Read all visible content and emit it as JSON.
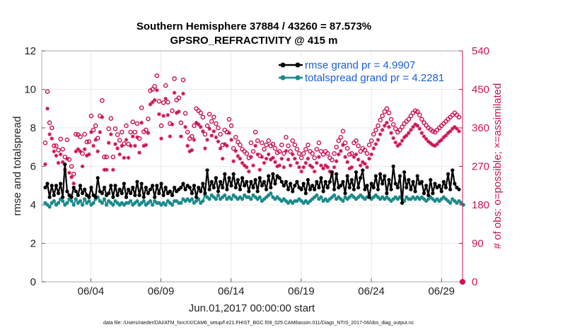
{
  "chart_data": {
    "type": "line",
    "title_line1": "Southern Hemisphere 37884 / 43260 = 87.573%",
    "title_line2": "GPSRO_REFRACTIVITY @ 415 m",
    "xlabel": "Jun.01,2017 00:00:00 start",
    "ylabel_left": "rmse and totalspread",
    "ylabel_right": "# of obs: o=possible; ×=assimilated",
    "footer": "data file: /Users/raeder/DAI/ATM_forcXX/CAM6_setup/f.e21.FHIST_BGC.f09_025.CAM6assim.011/Diags_NTrS_2017-06/obs_diag_output.nc",
    "xlim": [
      0.5,
      30.5
    ],
    "ylim_left": [
      0,
      12
    ],
    "ylim_right": [
      0,
      540
    ],
    "x_tick_values": [
      4,
      9,
      14,
      19,
      24,
      29
    ],
    "x_tick_labels": [
      "06/04",
      "06/09",
      "06/14",
      "06/19",
      "06/24",
      "06/29"
    ],
    "y_left_ticks": [
      0,
      2,
      4,
      6,
      8,
      10,
      12
    ],
    "y_left_tick_labels": [
      "0",
      "2",
      "4",
      "6",
      "8",
      "10",
      "12"
    ],
    "y_right_ticks": [
      0,
      90,
      180,
      270,
      360,
      450,
      540
    ],
    "y_right_tick_labels": [
      "0",
      "90",
      "180",
      "270",
      "360",
      "450",
      "540"
    ],
    "legend": [
      "rmse grand pr = 4.9907",
      "totalspread grand pr = 4.2281"
    ],
    "colors": {
      "rmse": "#000000",
      "spread": "#1a8a8a",
      "obs": "#cc1155",
      "legend_text": "#1a5fd8",
      "grid": "#e3e3e3"
    },
    "series": [
      {
        "name": "rmse",
        "values": [
          4.9,
          5.1,
          4.4,
          5.0,
          4.5,
          5.0,
          4.6,
          5.1,
          4.4,
          6.1,
          4.7,
          4.5,
          4.4,
          4.9,
          4.7,
          4.5,
          5.0,
          4.6,
          4.8,
          4.5,
          4.4,
          4.9,
          4.5,
          4.4,
          5.4,
          4.7,
          4.6,
          4.9,
          4.5,
          4.6,
          5.0,
          4.4,
          5.0,
          4.5,
          4.8,
          4.6,
          5.1,
          4.4,
          4.8,
          4.6,
          4.9,
          4.5,
          5.2,
          4.5,
          5.1,
          4.4,
          4.9,
          4.6,
          4.8,
          5.0,
          4.4,
          5.0,
          4.6,
          5.1,
          4.5,
          4.9,
          4.6,
          4.7,
          4.5,
          4.9,
          4.7,
          4.8,
          4.9,
          5.1,
          4.8,
          5.0,
          4.9,
          4.6,
          5.0,
          4.4,
          4.9,
          4.7,
          5.1,
          4.6,
          5.8,
          4.8,
          5.2,
          4.9,
          5.4,
          4.7,
          5.2,
          4.9,
          5.6,
          4.8,
          5.4,
          5.0,
          5.6,
          4.9,
          5.3,
          4.8,
          5.4,
          5.0,
          5.2,
          4.7,
          5.2,
          4.9,
          5.3,
          4.7,
          5.4,
          5.0,
          5.2,
          4.8,
          5.5,
          4.9,
          5.6,
          5.1,
          5.5,
          5.4,
          5.2,
          5.0,
          5.2,
          4.8,
          5.1,
          4.7,
          5.0,
          5.2,
          4.9,
          4.8,
          5.1,
          4.6,
          5.3,
          4.8,
          5.0,
          4.8,
          5.2,
          4.9,
          5.4,
          4.7,
          5.2,
          4.9,
          5.2,
          5.7,
          4.8,
          5.6,
          4.9,
          5.0,
          5.2,
          4.6,
          5.5,
          4.9,
          5.3,
          4.8,
          5.7,
          4.9,
          5.4,
          5.8,
          4.8,
          5.0,
          4.4,
          5.1,
          4.9,
          5.5,
          4.8,
          5.6,
          5.1,
          5.5,
          4.6,
          5.3,
          4.8,
          6.0,
          5.1,
          4.9,
          5.5,
          4.1,
          5.7,
          4.9,
          5.3,
          4.8,
          5.2,
          4.7,
          5.5,
          5.1,
          5.2,
          4.6,
          5.0,
          4.5,
          5.3,
          4.6,
          5.1,
          4.9,
          5.0,
          4.7,
          5.2,
          4.9,
          5.6,
          4.8,
          5.8,
          5.1,
          4.9,
          4.8
        ]
      },
      {
        "name": "totalspread",
        "values": [
          4.1,
          4.0,
          3.9,
          4.1,
          4.2,
          4.0,
          4.1,
          4.3,
          4.2,
          4.0,
          4.1,
          4.3,
          4.2,
          4.0,
          4.3,
          4.1,
          4.2,
          4.0,
          4.3,
          4.1,
          4.2,
          4.0,
          4.1,
          4.3,
          4.4,
          4.2,
          4.1,
          4.3,
          4.0,
          4.2,
          4.1,
          4.0,
          4.2,
          4.1,
          4.0,
          4.1,
          4.0,
          4.1,
          4.1,
          4.2,
          4.0,
          4.1,
          4.2,
          4.0,
          4.1,
          4.2,
          4.0,
          4.1,
          4.2,
          4.0,
          4.2,
          4.1,
          4.1,
          4.0,
          4.1,
          4.0,
          4.2,
          4.1,
          4.0,
          4.2,
          4.2,
          4.1,
          4.1,
          4.3,
          4.2,
          4.3,
          4.2,
          4.3,
          4.1,
          4.2,
          4.3,
          4.1,
          4.2,
          4.5,
          4.4,
          4.3,
          4.5,
          4.4,
          4.3,
          4.5,
          4.3,
          4.4,
          4.5,
          4.3,
          4.4,
          4.3,
          4.5,
          4.4,
          4.3,
          4.4,
          4.3,
          4.5,
          4.4,
          4.4,
          4.3,
          4.5,
          4.4,
          4.3,
          4.4,
          4.2,
          4.3,
          4.4,
          4.5,
          4.6,
          4.4,
          4.3,
          4.4,
          4.3,
          4.2,
          4.3,
          4.2,
          4.1,
          4.2,
          4.1,
          4.2,
          4.2,
          4.3,
          4.2,
          4.1,
          4.2,
          4.1,
          4.2,
          4.3,
          4.4,
          4.5,
          4.3,
          4.4,
          4.2,
          4.3,
          4.2,
          4.3,
          4.4,
          4.5,
          4.3,
          4.4,
          4.3,
          4.2,
          4.4,
          4.3,
          4.4,
          4.5,
          4.4,
          4.3,
          4.4,
          4.5,
          4.4,
          4.3,
          4.4,
          4.5,
          4.3,
          4.4,
          4.5,
          4.4,
          4.3,
          4.4,
          4.3,
          4.4,
          4.3,
          4.2,
          4.3,
          4.4,
          4.3,
          4.4,
          4.3,
          4.2,
          4.4,
          4.3,
          4.3,
          4.4,
          4.3,
          4.4,
          4.3,
          4.4,
          4.3,
          4.2,
          4.3,
          4.4,
          4.3,
          4.2,
          4.3,
          4.2,
          4.3,
          4.4,
          4.3,
          4.2,
          4.1,
          4.3,
          4.2,
          4.1,
          4.2,
          4.1,
          4.0
        ]
      },
      {
        "name": "obs possible",
        "values": [
          325,
          445,
          372,
          360,
          318,
          318,
          308,
          334,
          310,
          292,
          332,
          286,
          270,
          252,
          345,
          344,
          339,
          300,
          345,
          327,
          328,
          388,
          355,
          365,
          336,
          388,
          424,
          292,
          292,
          358,
          382,
          292,
          358,
          344,
          331,
          350,
          323,
          365,
          322,
          350,
          374,
          350,
          370,
          335,
          407,
          351,
          355,
          381,
          447,
          450,
          457,
          482,
          422,
          365,
          419,
          459,
          420,
          370,
          400,
          475,
          425,
          430,
          372,
          472,
          394,
          350,
          335,
          340,
          365,
          405,
          400,
          395,
          385,
          345,
          365,
          392,
          375,
          385,
          370,
          360,
          345,
          320,
          355,
          350,
          380,
          365,
          312,
          338,
          327,
          320,
          310,
          305,
          300,
          290,
          325,
          305,
          350,
          330,
          295,
          325,
          310,
          320,
          330,
          318,
          322,
          312,
          302,
          305,
          320,
          300,
          338,
          318,
          305,
          330,
          320,
          310,
          300,
          290,
          300,
          310,
          320,
          305,
          300,
          290,
          310,
          325,
          305,
          298,
          305,
          300,
          290,
          285,
          300,
          315,
          330,
          338,
          352,
          325,
          312,
          298,
          300,
          325,
          330,
          318,
          305,
          312,
          308,
          300,
          320,
          330,
          345,
          355,
          365,
          378,
          388,
          398,
          405,
          395,
          380,
          368,
          358,
          350,
          355,
          362,
          370,
          375,
          380,
          388,
          395,
          400,
          398,
          390,
          380,
          372,
          366,
          360,
          356,
          352,
          350,
          355,
          360,
          365,
          370,
          375,
          380,
          385,
          390,
          395,
          390,
          385
        ]
      },
      {
        "name": "obs assimilated",
        "values": [
          275,
          405,
          345,
          335,
          305,
          295,
          278,
          298,
          280,
          262,
          288,
          255,
          245,
          230,
          305,
          310,
          305,
          270,
          310,
          295,
          298,
          350,
          318,
          332,
          305,
          350,
          385,
          262,
          262,
          325,
          345,
          262,
          322,
          312,
          298,
          318,
          290,
          332,
          290,
          318,
          340,
          318,
          338,
          302,
          372,
          318,
          320,
          348,
          415,
          420,
          425,
          448,
          392,
          335,
          388,
          428,
          390,
          340,
          368,
          442,
          395,
          398,
          340,
          440,
          362,
          318,
          305,
          308,
          332,
          372,
          368,
          362,
          352,
          312,
          332,
          358,
          342,
          352,
          338,
          328,
          312,
          288,
          322,
          318,
          348,
          332,
          282,
          306,
          294,
          288,
          278,
          272,
          268,
          258,
          292,
          272,
          318,
          298,
          262,
          292,
          278,
          288,
          298,
          286,
          290,
          280,
          270,
          272,
          288,
          268,
          306,
          286,
          272,
          298,
          288,
          278,
          268,
          258,
          268,
          278,
          288,
          272,
          268,
          258,
          278,
          292,
          272,
          265,
          272,
          268,
          258,
          252,
          268,
          282,
          298,
          306,
          320,
          292,
          280,
          265,
          268,
          292,
          298,
          286,
          272,
          280,
          276,
          268,
          288,
          298,
          312,
          322,
          332,
          345,
          355,
          365,
          372,
          362,
          348,
          336,
          326,
          318,
          322,
          330,
          338,
          342,
          348,
          355,
          362,
          368,
          365,
          358,
          348,
          340,
          334,
          328,
          324,
          320,
          318,
          322,
          328,
          332,
          338,
          342,
          348,
          352,
          358,
          362,
          358,
          352
        ]
      }
    ]
  }
}
